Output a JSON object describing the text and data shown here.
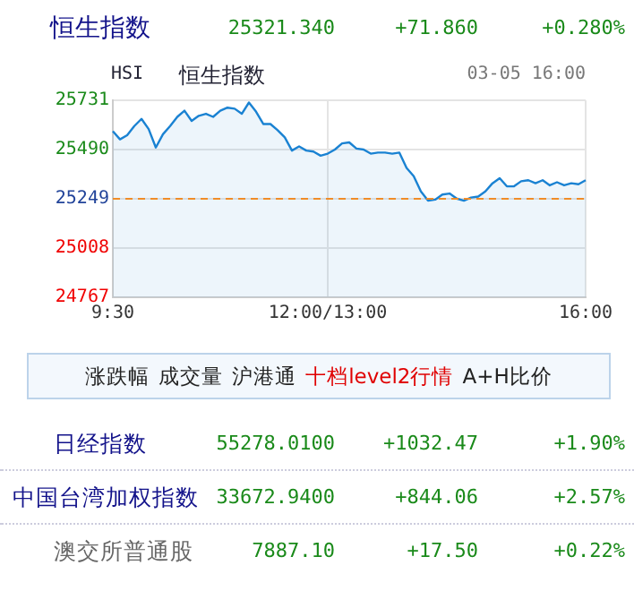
{
  "chart_data": [
    {
      "type": "other",
      "annotations": [
        "恒生指数",
        "25321.340",
        "+71.860",
        "+0.280%"
      ]
    },
    {
      "type": "area",
      "title": "HSI",
      "subtitle": "恒生指数",
      "annotations": [
        "03-05 16:00"
      ],
      "categories": [
        "9:30",
        null,
        null,
        null,
        null,
        null,
        null,
        null,
        null,
        null,
        null,
        null,
        null,
        null,
        null,
        null,
        null,
        null,
        null,
        null,
        null,
        null,
        null,
        null,
        null,
        null,
        null,
        null,
        null,
        null,
        "12:00/13:00",
        null,
        null,
        null,
        null,
        null,
        null,
        null,
        null,
        null,
        null,
        null,
        null,
        null,
        null,
        null,
        null,
        null,
        null,
        null,
        null,
        null,
        null,
        null,
        null,
        null,
        null,
        null,
        null,
        null,
        null,
        null,
        null,
        null,
        null,
        null,
        "16:00"
      ],
      "series": [
        {
          "color": "#1a82d2",
          "values": [
            25580,
            25540,
            25560,
            25605,
            25640,
            25590,
            25500,
            25565,
            25605,
            25650,
            25680,
            25630,
            25655,
            25665,
            25650,
            25680,
            25695,
            25690,
            25665,
            25720,
            25675,
            25615,
            25615,
            25585,
            25550,
            25485,
            25505,
            25485,
            25480,
            25460,
            25470,
            25490,
            25520,
            25525,
            25495,
            25490,
            25470,
            25475,
            25475,
            25470,
            25475,
            25400,
            25360,
            25285,
            25240,
            25245,
            25270,
            25275,
            25250,
            25240,
            25255,
            25260,
            25285,
            25325,
            25350,
            25310,
            25310,
            25335,
            25340,
            25325,
            25340,
            25315,
            25330,
            25315,
            25325,
            25320,
            25340
          ]
        }
      ],
      "ylim": [
        24767,
        25731
      ],
      "yticks": [
        24767,
        25008,
        25249,
        25490,
        25731
      ],
      "ref_lines": [
        {
          "axis": "y",
          "value": 25249,
          "color": "#f08c28",
          "line_style": "dashed"
        }
      ],
      "grid": true,
      "marker": "none",
      "line_style": "solid"
    },
    {
      "type": "other",
      "annotations": [
        "涨跌幅",
        "成交量",
        "沪港通",
        "十档level2行情",
        "A+H比价"
      ]
    },
    {
      "type": "other",
      "annotations": [
        "日经指数",
        "55278.0100",
        "+1032.47",
        "+1.90%",
        "中国台湾加权指数",
        "33672.9400",
        "+844.06",
        "+2.57%",
        "澳交所普通股",
        "7887.10",
        "+17.50",
        "+0.22%"
      ]
    }
  ]
}
